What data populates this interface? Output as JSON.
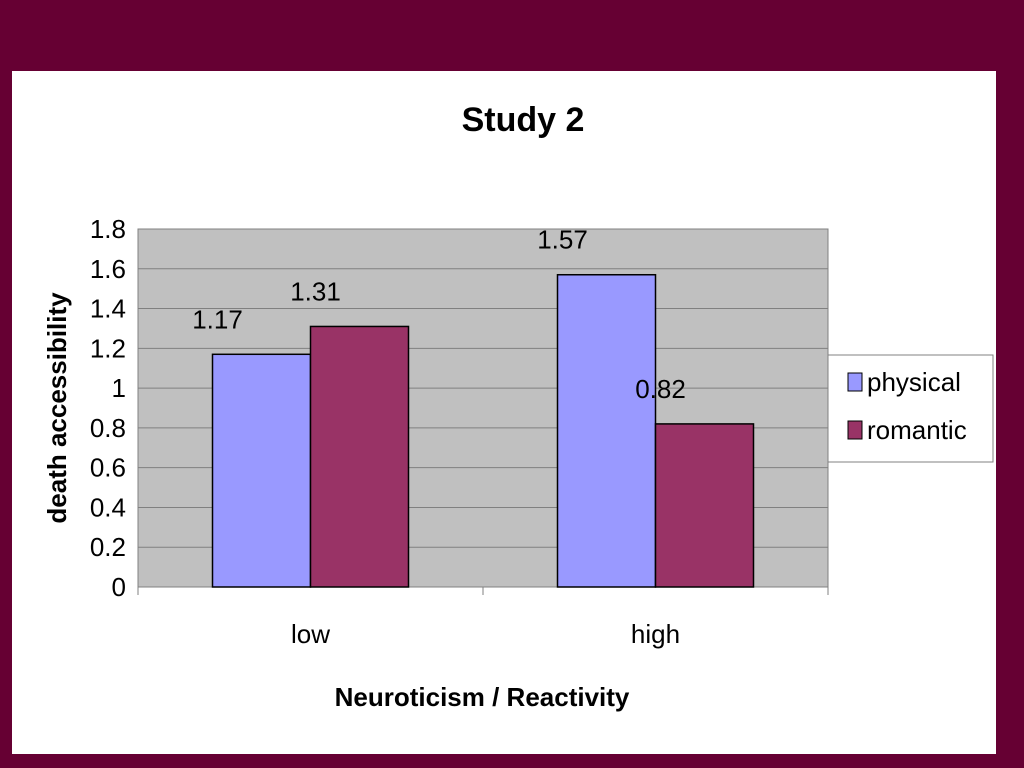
{
  "chart_data": {
    "type": "bar",
    "title": "Study 2",
    "xlabel": "Neuroticism / Reactivity",
    "ylabel": "death accessibility",
    "categories": [
      "low",
      "high"
    ],
    "series": [
      {
        "name": "physical",
        "values": [
          1.17,
          1.57
        ],
        "labels": [
          "1.17",
          "1.57"
        ],
        "color": "#9999FF"
      },
      {
        "name": "romantic",
        "values": [
          1.31,
          0.82
        ],
        "labels": [
          "1.31",
          "0.82"
        ],
        "color": "#993366"
      }
    ],
    "ylim": [
      0,
      1.8
    ],
    "yticks": [
      "0",
      "0.2",
      "0.4",
      "0.6",
      "0.8",
      "1",
      "1.2",
      "1.4",
      "1.6",
      "1.8"
    ],
    "grid": true,
    "legend": "right",
    "plot_background": "#C0C0C0",
    "page_background": "#660033"
  }
}
